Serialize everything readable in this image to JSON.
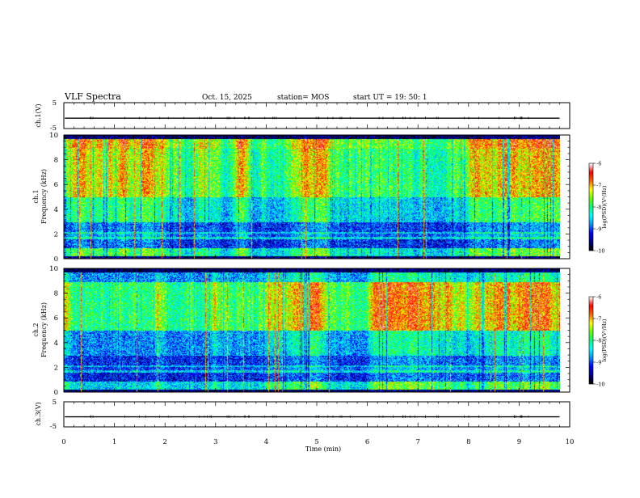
{
  "header": {
    "title": "VLF Spectra",
    "date": "Oct. 15, 2025",
    "station": "station= MOS",
    "start": "start  UT  =   19: 50: 1"
  },
  "chart_data": [
    {
      "type": "line",
      "panel": "ch1_waveform",
      "ylabel": "ch.1(V)",
      "yticks": [
        "5",
        "-5"
      ],
      "ylim": [
        -5,
        5
      ],
      "trace_level": -1,
      "xlim": [
        0,
        10
      ]
    },
    {
      "type": "heatmap",
      "panel": "ch1_spectrogram",
      "ylabel": "ch.1\nFrequency (kHz)",
      "ylabel_line1": "ch.1",
      "ylabel_line2": "Frequency (kHz)",
      "yticks": [
        "0",
        "2",
        "4",
        "6",
        "8",
        "10"
      ],
      "ylim": [
        0,
        10
      ],
      "xlim": [
        0,
        9.8
      ],
      "colorbar": {
        "label": "log(PSD)(V²/Hz)",
        "ticks": [
          "-6",
          "-7",
          "-8",
          "-9",
          "-10"
        ],
        "range": [
          -10,
          -6
        ]
      }
    },
    {
      "type": "heatmap",
      "panel": "ch2_spectrogram",
      "ylabel": "ch.2\nFrequency (kHz)",
      "ylabel_line1": "ch.2",
      "ylabel_line2": "Frequency (kHz)",
      "yticks": [
        "0",
        "2",
        "4",
        "6",
        "8",
        "10"
      ],
      "ylim": [
        0,
        10
      ],
      "xlim": [
        0,
        9.8
      ],
      "colorbar": {
        "label": "log(PSD)(V²/Hz)",
        "ticks": [
          "-6",
          "-7",
          "-8",
          "-9",
          "-10"
        ],
        "range": [
          -10,
          -6
        ]
      }
    },
    {
      "type": "line",
      "panel": "ch3_waveform",
      "ylabel": "ch.3(V)",
      "yticks": [
        "5",
        "-5"
      ],
      "ylim": [
        -5,
        5
      ],
      "trace_level": -1,
      "xlim": [
        0,
        10
      ]
    }
  ],
  "xaxis": {
    "label": "Time  (min)",
    "ticks": [
      "0",
      "1",
      "2",
      "3",
      "4",
      "5",
      "6",
      "7",
      "8",
      "9",
      "10"
    ],
    "range": [
      0,
      10
    ]
  },
  "colors": {
    "colormap": [
      "#000000",
      "#00008c",
      "#0000ff",
      "#0096ff",
      "#00ffff",
      "#00ff78",
      "#64ff00",
      "#ffff00",
      "#ff6400",
      "#ff0000",
      "#ffffff"
    ]
  }
}
